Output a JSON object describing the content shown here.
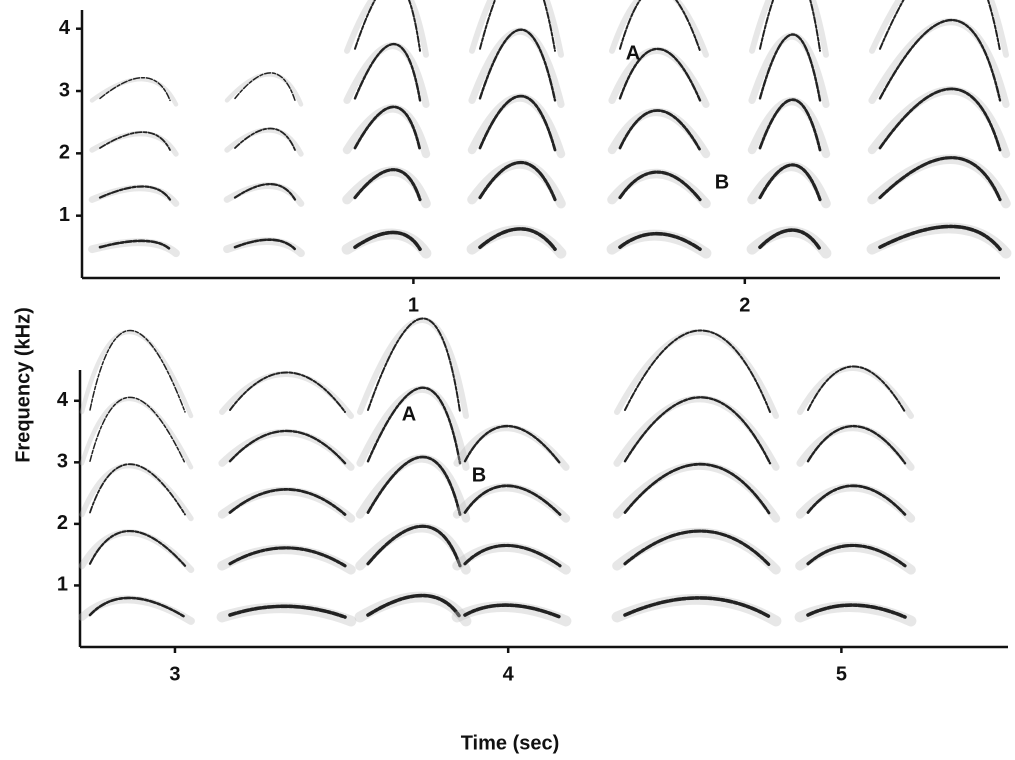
{
  "ylabel": "Frequency (kHz)",
  "xlabel": "Time (sec)",
  "chart_data": [
    {
      "type": "spectrogram",
      "xlim": [
        0,
        2.77
      ],
      "xticks": [
        1,
        2
      ],
      "ylim": [
        0,
        4.3
      ],
      "yticks": [
        1,
        2,
        3,
        4
      ],
      "annotations": [
        "A",
        "B"
      ]
    },
    {
      "type": "spectrogram",
      "xlim": [
        2.715,
        5.5
      ],
      "xticks": [
        3,
        4,
        5
      ],
      "ylim": [
        0,
        4.5
      ],
      "yticks": [
        1,
        2,
        3,
        4
      ],
      "annotations": [
        "A",
        "B"
      ]
    }
  ]
}
